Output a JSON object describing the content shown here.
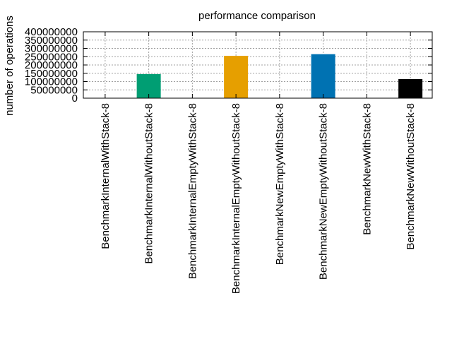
{
  "chart_data": {
    "type": "bar",
    "title": "performance comparison",
    "xlabel": "",
    "ylabel": "number of operations",
    "ylim": [
      0,
      400000000
    ],
    "yticks": [
      0,
      50000000,
      100000000,
      150000000,
      200000000,
      250000000,
      300000000,
      350000000,
      400000000
    ],
    "ytick_labels": [
      "0",
      "50000000",
      "100000000",
      "150000000",
      "200000000",
      "250000000",
      "300000000",
      "350000000",
      "400000000"
    ],
    "grid": true,
    "categories": [
      "BenchmarkInternalWithStack-8",
      "BenchmarkInternalWithoutStack-8",
      "BenchmarkInternalEmptyWithStack-8",
      "BenchmarkInternalEmptyWithoutStack-8",
      "BenchmarkNewEmptyWithStack-8",
      "BenchmarkNewEmptyWithoutStack-8",
      "BenchmarkNewWithStack-8",
      "BenchmarkNewWithoutStack-8"
    ],
    "values": [
      0,
      145000000,
      0,
      255000000,
      0,
      265000000,
      0,
      115000000
    ],
    "colors": [
      "#9400d3",
      "#009e73",
      "#56b4e9",
      "#e69f00",
      "#f0e442",
      "#0072b2",
      "#e51e10",
      "#000000"
    ]
  }
}
